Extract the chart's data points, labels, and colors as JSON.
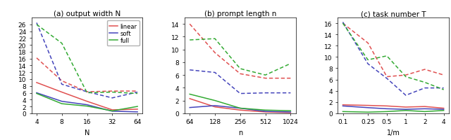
{
  "panel_a": {
    "title": "(a) output width N",
    "xlabel": "N",
    "x_vals": [
      4,
      8,
      16,
      32,
      64
    ],
    "x_ticks": [
      4,
      8,
      16,
      32,
      64
    ],
    "ylim": [
      0,
      28
    ],
    "yticks": [
      0,
      2,
      4,
      6,
      8,
      10,
      12,
      14,
      16,
      18,
      20,
      22,
      24,
      26
    ],
    "solid": {
      "linear": [
        9.0,
        6.2,
        3.5,
        1.0,
        1.2
      ],
      "soft": [
        6.0,
        3.5,
        2.5,
        0.6,
        0.4
      ],
      "full": [
        5.8,
        2.8,
        2.1,
        0.7,
        2.0
      ]
    },
    "dashed": {
      "linear": [
        16.2,
        9.5,
        6.3,
        6.5,
        6.5
      ],
      "soft": [
        26.5,
        8.5,
        6.3,
        4.5,
        6.2
      ],
      "full": [
        26.0,
        20.5,
        6.0,
        6.2,
        5.8
      ]
    }
  },
  "panel_b": {
    "title": "(b) prompt length n",
    "xlabel": "n",
    "x_vals": [
      64,
      128,
      256,
      512,
      1024
    ],
    "x_ticks": [
      64,
      128,
      256,
      512,
      1024
    ],
    "ylim": [
      0,
      15
    ],
    "yticks": [
      0,
      2,
      4,
      6,
      8,
      10,
      12,
      14
    ],
    "solid": {
      "linear": [
        2.3,
        1.0,
        0.5,
        0.2,
        0.1
      ],
      "soft": [
        0.9,
        1.2,
        0.8,
        0.3,
        0.2
      ],
      "full": [
        3.0,
        2.0,
        0.8,
        0.5,
        0.4
      ]
    },
    "dashed": {
      "linear": [
        14.0,
        9.5,
        6.2,
        5.5,
        5.5
      ],
      "soft": [
        6.8,
        6.4,
        3.1,
        3.2,
        3.2
      ],
      "full": [
        11.5,
        11.7,
        7.0,
        6.0,
        7.8
      ]
    }
  },
  "panel_c": {
    "title": "(c) task number T",
    "xlabel": "1/m",
    "x_vals": [
      0.1,
      0.25,
      0.5,
      1.0,
      2.0,
      4.0
    ],
    "x_ticks": [
      0.1,
      0.25,
      0.5,
      1,
      2,
      4
    ],
    "x_ticklabels": [
      "0.1",
      "0.25",
      "0.5",
      "1",
      "2",
      "4"
    ],
    "ylim": [
      0,
      17
    ],
    "yticks": [
      0,
      2,
      4,
      6,
      8,
      10,
      12,
      14,
      16
    ],
    "solid": {
      "linear": [
        1.5,
        1.4,
        1.3,
        1.1,
        1.2,
        0.9
      ],
      "soft": [
        1.3,
        1.0,
        0.8,
        0.7,
        0.8,
        0.7
      ],
      "full": [
        0.3,
        0.2,
        0.3,
        0.5,
        0.3,
        0.5
      ]
    },
    "dashed": {
      "linear": [
        16.0,
        12.5,
        6.5,
        6.8,
        7.8,
        6.8
      ],
      "soft": [
        16.2,
        8.8,
        6.2,
        3.2,
        4.5,
        4.5
      ],
      "full": [
        16.0,
        9.5,
        10.2,
        6.5,
        5.5,
        4.2
      ]
    }
  },
  "colors": {
    "linear": "#e05050",
    "soft": "#4444bb",
    "full": "#33aa33"
  },
  "legend_labels": [
    "linear",
    "soft",
    "full"
  ]
}
